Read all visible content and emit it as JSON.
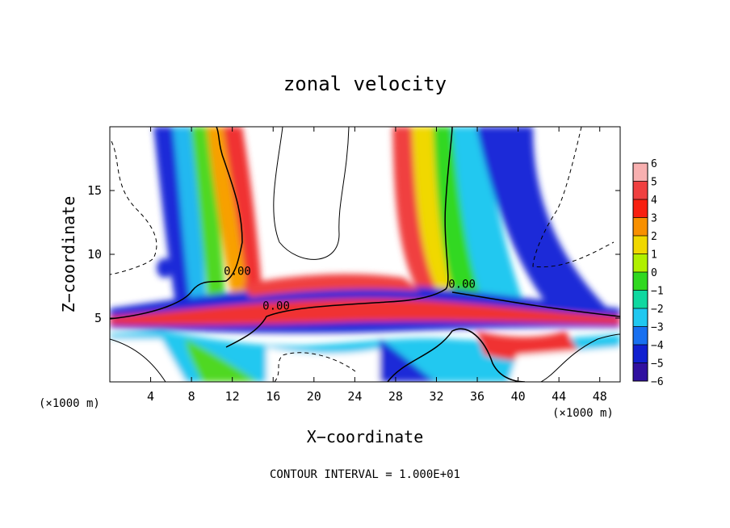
{
  "chart_data": {
    "type": "heatmap",
    "title": "zonal velocity",
    "xlabel": "X−coordinate",
    "ylabel": "Z−coordinate",
    "x_unit_left": "(×1000 m)",
    "x_unit_right": "(×1000 m)",
    "footer": "CONTOUR INTERVAL = 1.000E+01",
    "xlim": [
      0,
      50
    ],
    "ylim": [
      0,
      20
    ],
    "xticks": [
      4,
      8,
      12,
      16,
      20,
      24,
      28,
      32,
      36,
      40,
      44,
      48
    ],
    "yticks": [
      5,
      10,
      15
    ],
    "colorbar": {
      "levels": [
        6,
        5,
        4,
        3,
        2,
        1,
        0,
        -1,
        -2,
        -3,
        -4,
        -5,
        -6
      ],
      "colors": [
        "#f8b0b0",
        "#f04040",
        "#f82010",
        "#f89000",
        "#f0d800",
        "#b0f000",
        "#30d820",
        "#10d8a0",
        "#20c8f0",
        "#1870f0",
        "#1020d0",
        "#3010a0"
      ]
    },
    "contour_labels": [
      {
        "text": "0.00",
        "x": 12.5,
        "y": 8.5
      },
      {
        "text": "0.00",
        "x": 16.3,
        "y": 5.8
      },
      {
        "text": "0.00",
        "x": 34.5,
        "y": 7.5
      }
    ]
  }
}
